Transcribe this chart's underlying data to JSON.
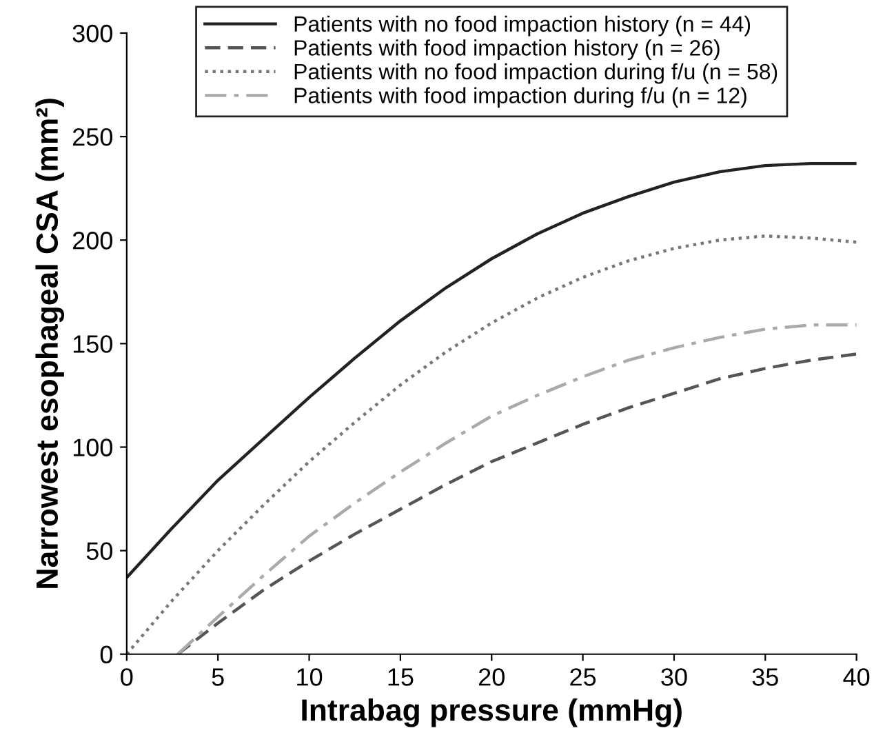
{
  "chart_data": {
    "type": "line",
    "xlabel": "Intrabag pressure (mmHg)",
    "ylabel": "Narrowest esophageal CSA (mm²)",
    "xlim": [
      0,
      40
    ],
    "xticks": [
      0,
      5,
      10,
      15,
      20,
      25,
      30,
      35,
      40
    ],
    "ylim": [
      0,
      300
    ],
    "yticks": [
      0,
      50,
      100,
      150,
      200,
      250,
      300
    ],
    "grid": false,
    "legend": "top",
    "marker": "none",
    "series": [
      {
        "name": "Patients with no food impaction history (n = 44)",
        "color": "#222222",
        "line_style": "solid",
        "x": [
          0,
          2.5,
          5,
          7.5,
          10,
          12.5,
          15,
          17.5,
          20,
          22.5,
          25,
          27.5,
          30,
          32.5,
          35,
          37.5,
          40
        ],
        "values": [
          37,
          61,
          84,
          104,
          124,
          143,
          161,
          177,
          191,
          203,
          213,
          221,
          228,
          233,
          236,
          237,
          237
        ]
      },
      {
        "name": "Patients with food impaction history (n = 26)",
        "color": "#555555",
        "line_style": "dashed",
        "x": [
          2.8,
          5,
          7.5,
          10,
          12.5,
          15,
          17.5,
          20,
          22.5,
          25,
          27.5,
          30,
          32.5,
          35,
          37.5,
          40
        ],
        "values": [
          0,
          15,
          31,
          45,
          58,
          70,
          82,
          93,
          102,
          111,
          119,
          126,
          133,
          138,
          142,
          145
        ]
      },
      {
        "name": "Patients with no food impaction during f/u (n = 58)",
        "color": "#777777",
        "line_style": "dotted",
        "x": [
          0,
          2.5,
          5,
          7.5,
          10,
          12.5,
          15,
          17.5,
          20,
          22.5,
          25,
          27.5,
          30,
          32.5,
          35,
          37.5,
          40
        ],
        "values": [
          0,
          26,
          50,
          72,
          93,
          112,
          130,
          146,
          160,
          172,
          182,
          190,
          196,
          200,
          202,
          201,
          199
        ]
      },
      {
        "name": "Patients with food impaction during f/u (n = 12)",
        "color": "#aaaaaa",
        "line_style": "dashdot",
        "x": [
          2.8,
          5,
          7.5,
          10,
          12.5,
          15,
          17.5,
          20,
          22.5,
          25,
          27.5,
          30,
          32.5,
          35,
          37.5,
          40
        ],
        "values": [
          0,
          18,
          38,
          57,
          73,
          88,
          102,
          115,
          125,
          134,
          142,
          148,
          153,
          157,
          159,
          159
        ]
      }
    ]
  }
}
